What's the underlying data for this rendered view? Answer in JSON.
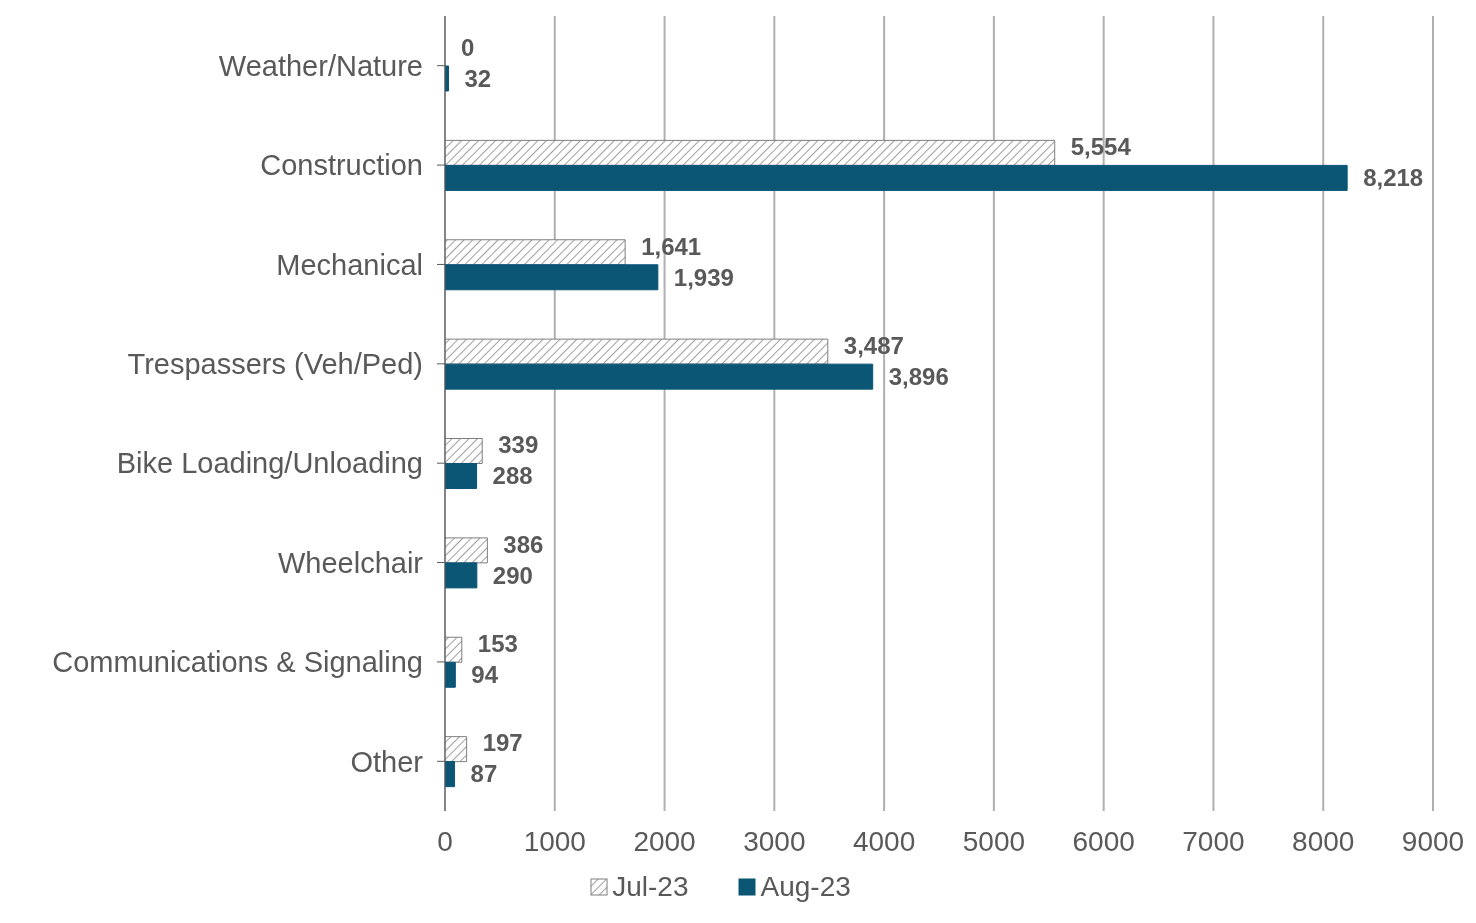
{
  "chart_data": {
    "type": "bar",
    "orientation": "horizontal",
    "categories": [
      "Weather/Nature",
      "Construction",
      "Mechanical",
      "Trespassers (Veh/Ped)",
      "Bike Loading/Unloading",
      "Wheelchair",
      "Communications & Signaling",
      "Other"
    ],
    "series": [
      {
        "name": "Jul-23",
        "color": "#7f7f7f",
        "values": [
          0,
          5554,
          1641,
          3487,
          339,
          386,
          153,
          197
        ],
        "value_labels": [
          "0",
          "5,554",
          "1,641",
          "3,487",
          "339",
          "386",
          "153",
          "197"
        ]
      },
      {
        "name": "Aug-23",
        "color": "#0b5575",
        "values": [
          32,
          8218,
          1939,
          3896,
          288,
          290,
          94,
          87
        ],
        "value_labels": [
          "32",
          "8,218",
          "1,939",
          "3,896",
          "288",
          "290",
          "94",
          "87"
        ]
      }
    ],
    "xlim": [
      0,
      9000
    ],
    "xticks": [
      0,
      1000,
      2000,
      3000,
      4000,
      5000,
      6000,
      7000,
      8000,
      9000
    ],
    "grid": "x",
    "legend": "bottom"
  }
}
